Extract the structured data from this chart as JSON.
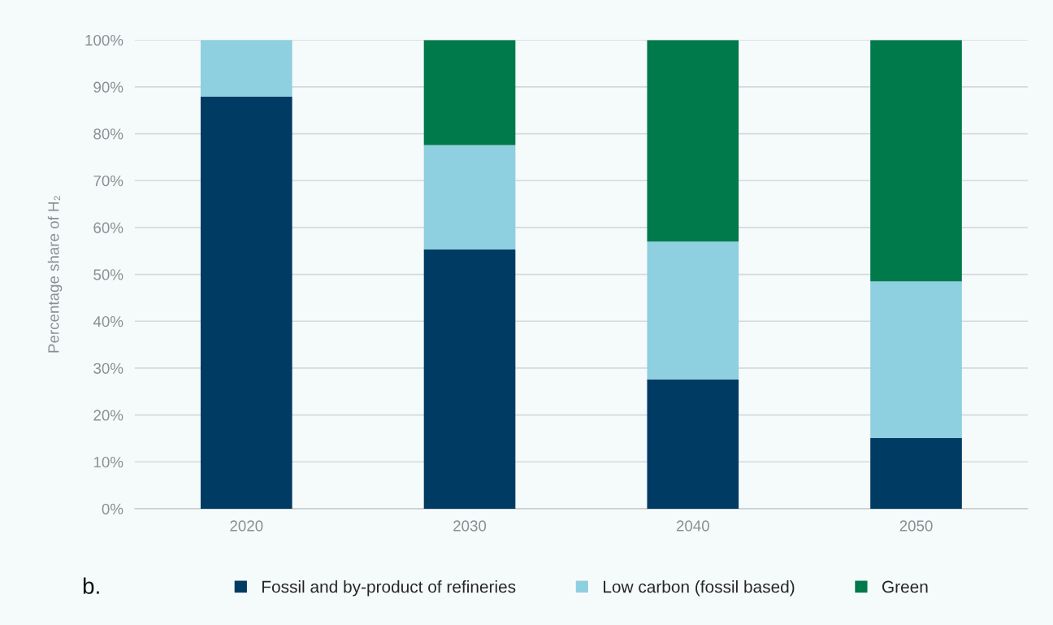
{
  "chart_data": {
    "type": "bar",
    "stacked": true,
    "ylabel": "Percentage share of H₂",
    "categories": [
      "2020",
      "2030",
      "2040",
      "2050"
    ],
    "series": [
      {
        "name": "Fossil and by-product of refineries",
        "color": "#003b64",
        "values": [
          87.9,
          55.3,
          27.6,
          15.1
        ]
      },
      {
        "name": "Low carbon (fossil based)",
        "color": "#8ecfe0",
        "values": [
          12.1,
          22.3,
          29.4,
          33.4
        ]
      },
      {
        "name": "Green",
        "color": "#00794b",
        "values": [
          null,
          22.4,
          43.0,
          51.5
        ]
      }
    ],
    "ylim": [
      0,
      100
    ],
    "yticks": [
      {
        "value": 0,
        "label": "0%"
      },
      {
        "value": 10,
        "label": "10%"
      },
      {
        "value": 20,
        "label": "20%"
      },
      {
        "value": 30,
        "label": "30%"
      },
      {
        "value": 40,
        "label": "40%"
      },
      {
        "value": 50,
        "label": "50%"
      },
      {
        "value": 60,
        "label": "60%"
      },
      {
        "value": 70,
        "label": "70%"
      },
      {
        "value": 80,
        "label": "80%"
      },
      {
        "value": 90,
        "label": "90%"
      },
      {
        "value": 100,
        "label": "100%"
      }
    ],
    "grid": "y",
    "legend": "bottom",
    "annotations": [
      "b."
    ]
  }
}
